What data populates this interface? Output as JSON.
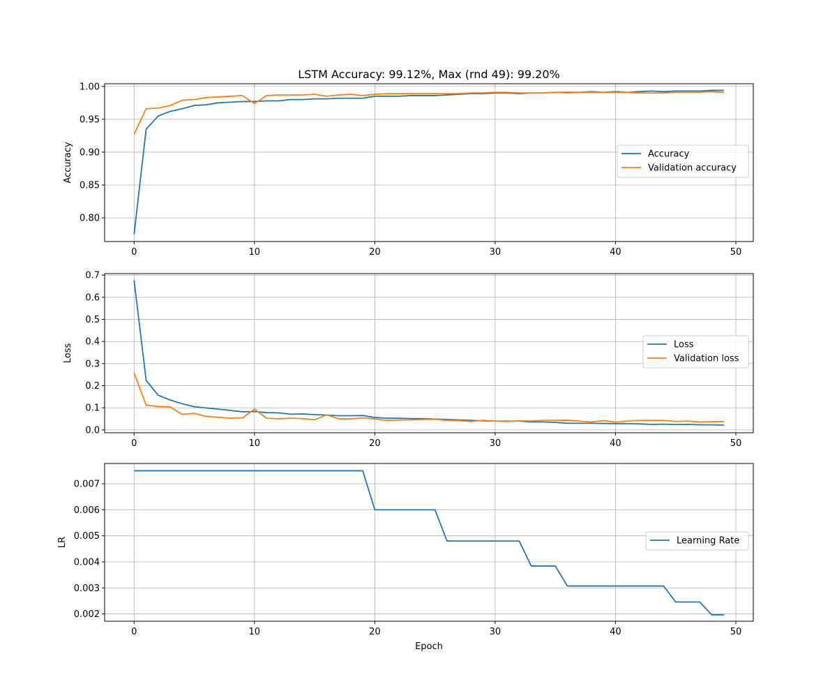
{
  "chart_data": [
    {
      "type": "line",
      "title": "LSTM Accuracy: 99.12%, Max (rnd 49): 99.20%",
      "xlabel": "",
      "ylabel": "Accuracy",
      "xlim": [
        -2.45,
        51.45
      ],
      "ylim": [
        0.764,
        1.004
      ],
      "xticks": [
        "0",
        "10",
        "20",
        "30",
        "40",
        "50"
      ],
      "yticks": [
        "0.80",
        "0.85",
        "0.90",
        "0.95",
        "1.00"
      ],
      "grid": true,
      "legend": "center-right",
      "series": [
        {
          "name": "Accuracy",
          "color": "#1f77b4",
          "x": [
            0,
            1,
            2,
            3,
            4,
            5,
            6,
            7,
            8,
            9,
            10,
            11,
            12,
            13,
            14,
            15,
            16,
            17,
            18,
            19,
            20,
            21,
            22,
            23,
            24,
            25,
            26,
            27,
            28,
            29,
            30,
            31,
            32,
            33,
            34,
            35,
            36,
            37,
            38,
            39,
            40,
            41,
            42,
            43,
            44,
            45,
            46,
            47,
            48,
            49
          ],
          "values": [
            0.775,
            0.935,
            0.955,
            0.962,
            0.966,
            0.971,
            0.972,
            0.975,
            0.976,
            0.977,
            0.977,
            0.978,
            0.978,
            0.98,
            0.98,
            0.981,
            0.981,
            0.982,
            0.982,
            0.982,
            0.985,
            0.985,
            0.985,
            0.986,
            0.986,
            0.986,
            0.987,
            0.988,
            0.989,
            0.989,
            0.99,
            0.99,
            0.989,
            0.99,
            0.99,
            0.991,
            0.991,
            0.991,
            0.992,
            0.991,
            0.992,
            0.991,
            0.992,
            0.993,
            0.992,
            0.993,
            0.993,
            0.993,
            0.994,
            0.994
          ]
        },
        {
          "name": "Validation accuracy",
          "color": "#ff7f0e",
          "x": [
            0,
            1,
            2,
            3,
            4,
            5,
            6,
            7,
            8,
            9,
            10,
            11,
            12,
            13,
            14,
            15,
            16,
            17,
            18,
            19,
            20,
            21,
            22,
            23,
            24,
            25,
            26,
            27,
            28,
            29,
            30,
            31,
            32,
            33,
            34,
            35,
            36,
            37,
            38,
            39,
            40,
            41,
            42,
            43,
            44,
            45,
            46,
            47,
            48,
            49
          ],
          "values": [
            0.927,
            0.966,
            0.967,
            0.971,
            0.979,
            0.98,
            0.983,
            0.984,
            0.985,
            0.986,
            0.974,
            0.986,
            0.987,
            0.987,
            0.987,
            0.988,
            0.985,
            0.987,
            0.988,
            0.986,
            0.988,
            0.989,
            0.989,
            0.989,
            0.989,
            0.989,
            0.989,
            0.989,
            0.99,
            0.99,
            0.991,
            0.991,
            0.99,
            0.99,
            0.99,
            0.991,
            0.99,
            0.991,
            0.991,
            0.991,
            0.991,
            0.991,
            0.99,
            0.99,
            0.99,
            0.991,
            0.991,
            0.991,
            0.992,
            0.991
          ]
        }
      ]
    },
    {
      "type": "line",
      "title": "",
      "xlabel": "",
      "ylabel": "Loss",
      "xlim": [
        -2.45,
        51.45
      ],
      "ylim": [
        -0.013,
        0.707
      ],
      "xticks": [
        "0",
        "10",
        "20",
        "30",
        "40",
        "50"
      ],
      "yticks": [
        "0.0",
        "0.1",
        "0.2",
        "0.3",
        "0.4",
        "0.5",
        "0.6",
        "0.7"
      ],
      "grid": true,
      "legend": "center-right",
      "series": [
        {
          "name": "Loss",
          "color": "#1f77b4",
          "x": [
            0,
            1,
            2,
            3,
            4,
            5,
            6,
            7,
            8,
            9,
            10,
            11,
            12,
            13,
            14,
            15,
            16,
            17,
            18,
            19,
            20,
            21,
            22,
            23,
            24,
            25,
            26,
            27,
            28,
            29,
            30,
            31,
            32,
            33,
            34,
            35,
            36,
            37,
            38,
            39,
            40,
            41,
            42,
            43,
            44,
            45,
            46,
            47,
            48,
            49
          ],
          "values": [
            0.677,
            0.224,
            0.157,
            0.135,
            0.118,
            0.105,
            0.099,
            0.094,
            0.088,
            0.082,
            0.083,
            0.078,
            0.077,
            0.071,
            0.072,
            0.069,
            0.067,
            0.064,
            0.064,
            0.065,
            0.056,
            0.053,
            0.053,
            0.051,
            0.051,
            0.049,
            0.047,
            0.045,
            0.043,
            0.041,
            0.04,
            0.04,
            0.04,
            0.036,
            0.036,
            0.034,
            0.03,
            0.03,
            0.03,
            0.029,
            0.028,
            0.028,
            0.027,
            0.025,
            0.026,
            0.024,
            0.025,
            0.023,
            0.023,
            0.022
          ]
        },
        {
          "name": "Validation loss",
          "color": "#ff7f0e",
          "x": [
            0,
            1,
            2,
            3,
            4,
            5,
            6,
            7,
            8,
            9,
            10,
            11,
            12,
            13,
            14,
            15,
            16,
            17,
            18,
            19,
            20,
            21,
            22,
            23,
            24,
            25,
            26,
            27,
            28,
            29,
            30,
            31,
            32,
            33,
            34,
            35,
            36,
            37,
            38,
            39,
            40,
            41,
            42,
            43,
            44,
            45,
            46,
            47,
            48,
            49
          ],
          "values": [
            0.258,
            0.112,
            0.106,
            0.104,
            0.07,
            0.075,
            0.061,
            0.057,
            0.053,
            0.054,
            0.094,
            0.053,
            0.05,
            0.053,
            0.051,
            0.046,
            0.068,
            0.05,
            0.05,
            0.054,
            0.05,
            0.043,
            0.045,
            0.045,
            0.047,
            0.048,
            0.043,
            0.042,
            0.038,
            0.043,
            0.04,
            0.038,
            0.041,
            0.04,
            0.043,
            0.043,
            0.044,
            0.04,
            0.036,
            0.042,
            0.035,
            0.04,
            0.043,
            0.043,
            0.043,
            0.038,
            0.04,
            0.036,
            0.037,
            0.038
          ]
        }
      ]
    },
    {
      "type": "line",
      "title": "",
      "xlabel": "Epoch",
      "ylabel": "LR",
      "xlim": [
        -2.45,
        51.45
      ],
      "ylim": [
        0.00172,
        0.00778
      ],
      "xticks": [
        "0",
        "10",
        "20",
        "30",
        "40",
        "50"
      ],
      "yticks": [
        "0.002",
        "0.003",
        "0.004",
        "0.005",
        "0.006",
        "0.007"
      ],
      "grid": true,
      "legend": "center-right",
      "series": [
        {
          "name": "Learning Rate",
          "color": "#1f77b4",
          "x": [
            0,
            1,
            2,
            3,
            4,
            5,
            6,
            7,
            8,
            9,
            10,
            11,
            12,
            13,
            14,
            15,
            16,
            17,
            18,
            19,
            20,
            21,
            22,
            23,
            24,
            25,
            26,
            27,
            28,
            29,
            30,
            31,
            32,
            33,
            34,
            35,
            36,
            37,
            38,
            39,
            40,
            41,
            42,
            43,
            44,
            45,
            46,
            47,
            48,
            49
          ],
          "values": [
            0.0075,
            0.0075,
            0.0075,
            0.0075,
            0.0075,
            0.0075,
            0.0075,
            0.0075,
            0.0075,
            0.0075,
            0.0075,
            0.0075,
            0.0075,
            0.0075,
            0.0075,
            0.0075,
            0.0075,
            0.0075,
            0.0075,
            0.0075,
            0.006,
            0.006,
            0.006,
            0.006,
            0.006,
            0.006,
            0.0048,
            0.0048,
            0.0048,
            0.0048,
            0.0048,
            0.0048,
            0.0048,
            0.00384,
            0.00384,
            0.00384,
            0.003072,
            0.003072,
            0.003072,
            0.003072,
            0.003072,
            0.003072,
            0.003072,
            0.003072,
            0.003072,
            0.0024576,
            0.0024576,
            0.0024576,
            0.00196608,
            0.00196608
          ]
        }
      ]
    }
  ]
}
